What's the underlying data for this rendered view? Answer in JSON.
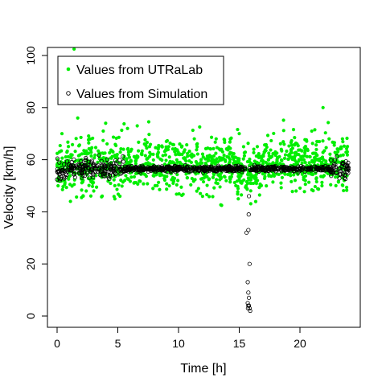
{
  "chart_data": {
    "type": "scatter",
    "title": "",
    "xlabel": "Time [h]",
    "ylabel": "Velocity [km/h]",
    "xlim": [
      0,
      24
    ],
    "ylim": [
      0,
      100
    ],
    "x_ticks": [
      0,
      5,
      10,
      15,
      20
    ],
    "y_ticks": [
      0,
      20,
      40,
      60,
      80,
      100
    ],
    "grid": false,
    "legend_position": "top-left",
    "series": [
      {
        "name": "Values from UTRaLab",
        "marker": "filled-circle",
        "color": "#00ee00",
        "summary": {
          "baseline": 58,
          "spread": 5,
          "dip_center_h": 15.8,
          "dip_min": 51
        },
        "points": [
          [
            0.2,
            63
          ],
          [
            0.4,
            70
          ],
          [
            0.9,
            57
          ],
          [
            1.4,
            103
          ],
          [
            1.7,
            76
          ],
          [
            2.0,
            60
          ],
          [
            2.4,
            48
          ],
          [
            3.8,
            71
          ],
          [
            4.0,
            74
          ],
          [
            4.6,
            63
          ],
          [
            5.8,
            72
          ],
          [
            6.6,
            73
          ],
          [
            7.2,
            66
          ],
          [
            9.0,
            67
          ],
          [
            10.1,
            66
          ],
          [
            11.3,
            68
          ],
          [
            13.1,
            68
          ],
          [
            15.0,
            70
          ],
          [
            16.2,
            64
          ],
          [
            19.8,
            62
          ],
          [
            20.6,
            64
          ],
          [
            21.4,
            67
          ],
          [
            21.9,
            80
          ],
          [
            22.4,
            68
          ],
          [
            23.5,
            68
          ],
          [
            23.9,
            63
          ],
          [
            15.2,
            51
          ],
          [
            15.9,
            51
          ],
          [
            16.5,
            52
          ],
          [
            1.1,
            44
          ]
        ]
      },
      {
        "name": "Values from Simulation",
        "marker": "open-circle",
        "color": "#000000",
        "summary": {
          "baseline": 56.5,
          "spread": 0.5
        },
        "points": [
          [
            15.6,
            32
          ],
          [
            15.75,
            33
          ],
          [
            15.8,
            46
          ],
          [
            15.78,
            39
          ],
          [
            15.85,
            20
          ],
          [
            15.7,
            13
          ],
          [
            15.75,
            9
          ],
          [
            15.8,
            7
          ],
          [
            15.7,
            5
          ],
          [
            15.8,
            4
          ],
          [
            15.75,
            4
          ],
          [
            15.85,
            3
          ],
          [
            15.9,
            2
          ],
          [
            15.72,
            3
          ]
        ]
      }
    ]
  }
}
